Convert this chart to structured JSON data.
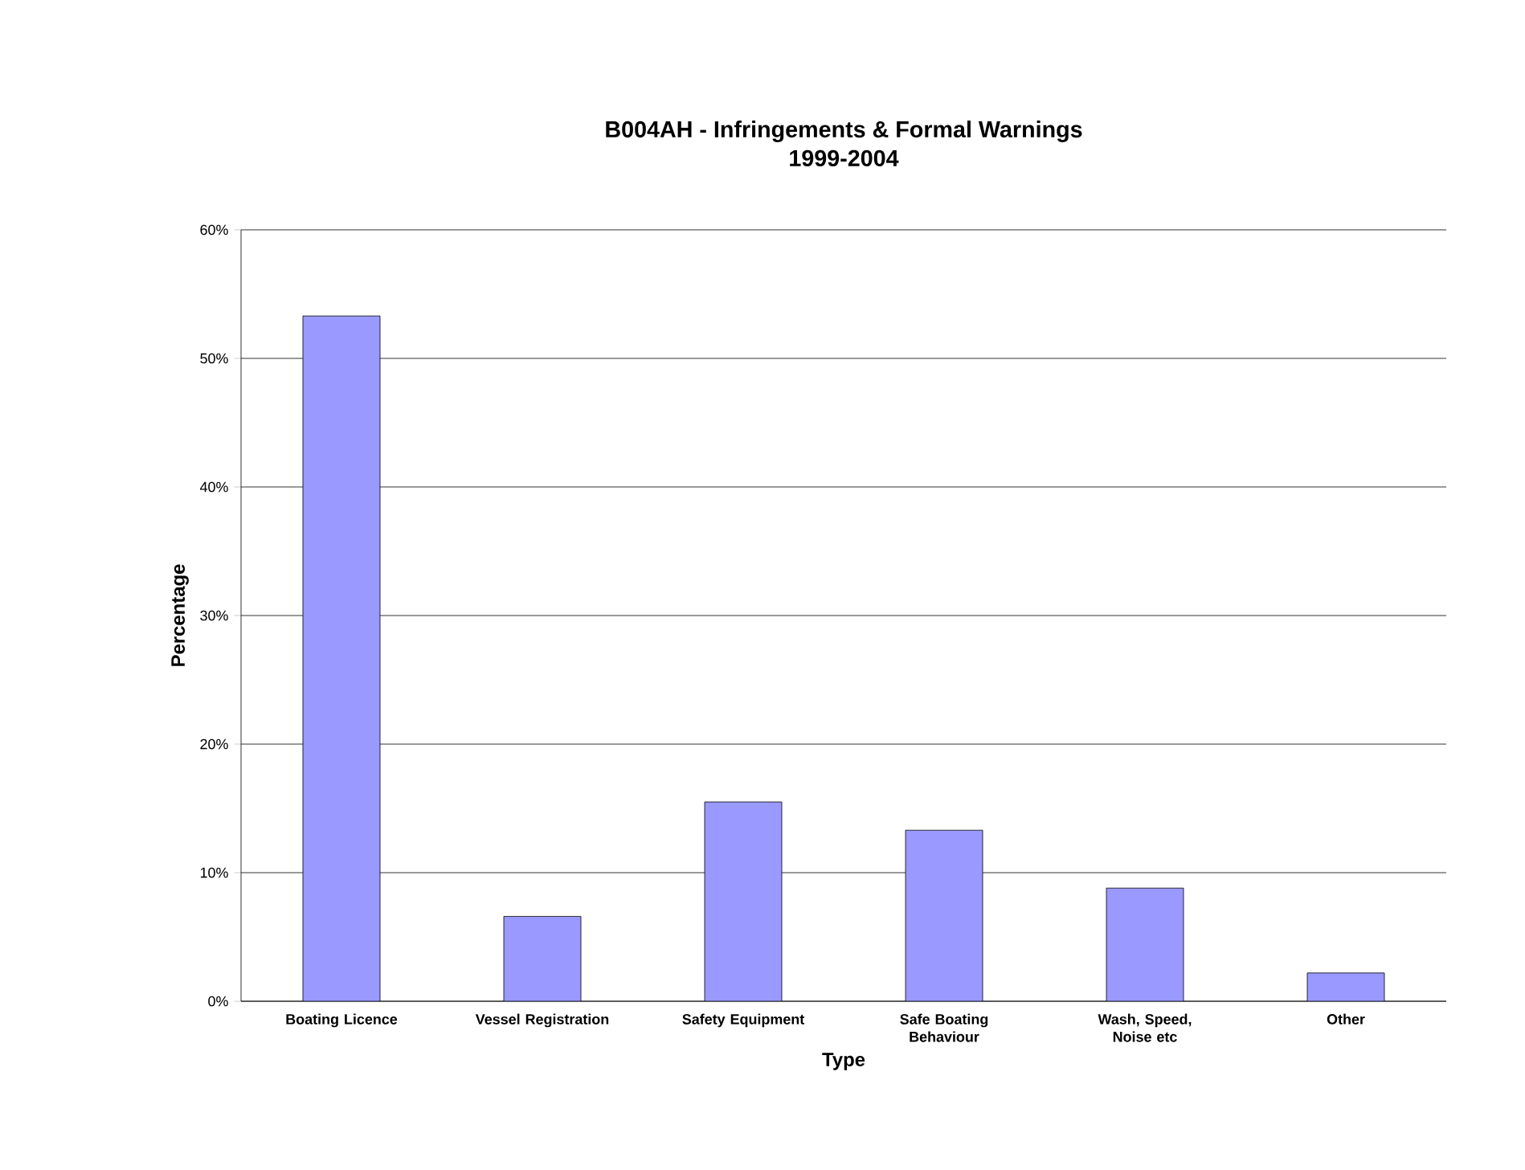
{
  "chart_data": {
    "type": "bar",
    "title": "B004AH - Infringements & Formal Warnings",
    "subtitle": "1999-2004",
    "xlabel": "Type",
    "ylabel": "Percentage",
    "categories": [
      "Boating Licence",
      "Vessel Registration",
      "Safety Equipment",
      "Safe Boating Behaviour",
      "Wash, Speed, Noise etc",
      "Other"
    ],
    "values": [
      53.3,
      6.6,
      15.5,
      13.3,
      8.8,
      2.2
    ],
    "color": "#9999ff",
    "ylim": [
      0,
      60
    ],
    "yticks": [
      {
        "value": 0,
        "label": "0%"
      },
      {
        "value": 10,
        "label": "10%"
      },
      {
        "value": 20,
        "label": "20%"
      },
      {
        "value": 30,
        "label": "30%"
      },
      {
        "value": 40,
        "label": "40%"
      },
      {
        "value": 50,
        "label": "50%"
      },
      {
        "value": 60,
        "label": "60%"
      }
    ],
    "grid": "y"
  }
}
